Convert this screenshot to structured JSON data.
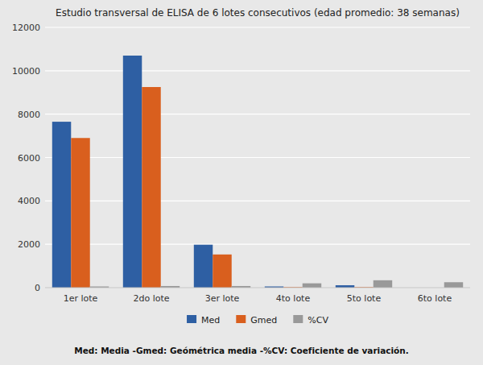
{
  "chart_data": {
    "type": "bar",
    "title": "Estudio transversal de ELISA de 6 lotes consecutivos (edad promedio: 38 semanas)",
    "categories": [
      "1er lote",
      "2do lote",
      "3er lote",
      "4to lote",
      "5to lote",
      "6to lote"
    ],
    "series": [
      {
        "name": "Med",
        "color": "#2e5fa3",
        "values": [
          7650,
          10700,
          1980,
          55,
          110,
          0
        ]
      },
      {
        "name": "Gmed",
        "color": "#d95f1e",
        "values": [
          6900,
          9250,
          1530,
          25,
          25,
          0
        ]
      },
      {
        "name": "%CV",
        "color": "#999999",
        "values": [
          55,
          75,
          75,
          200,
          340,
          250
        ]
      }
    ],
    "ylim": [
      0,
      12000
    ],
    "yticks": [
      0,
      2000,
      4000,
      6000,
      8000,
      10000,
      12000
    ],
    "grid": true,
    "legend": "bottom",
    "footnote": "Med: Media  -Gmed: Geómétrica media -%CV: Coeficiente de variación."
  }
}
